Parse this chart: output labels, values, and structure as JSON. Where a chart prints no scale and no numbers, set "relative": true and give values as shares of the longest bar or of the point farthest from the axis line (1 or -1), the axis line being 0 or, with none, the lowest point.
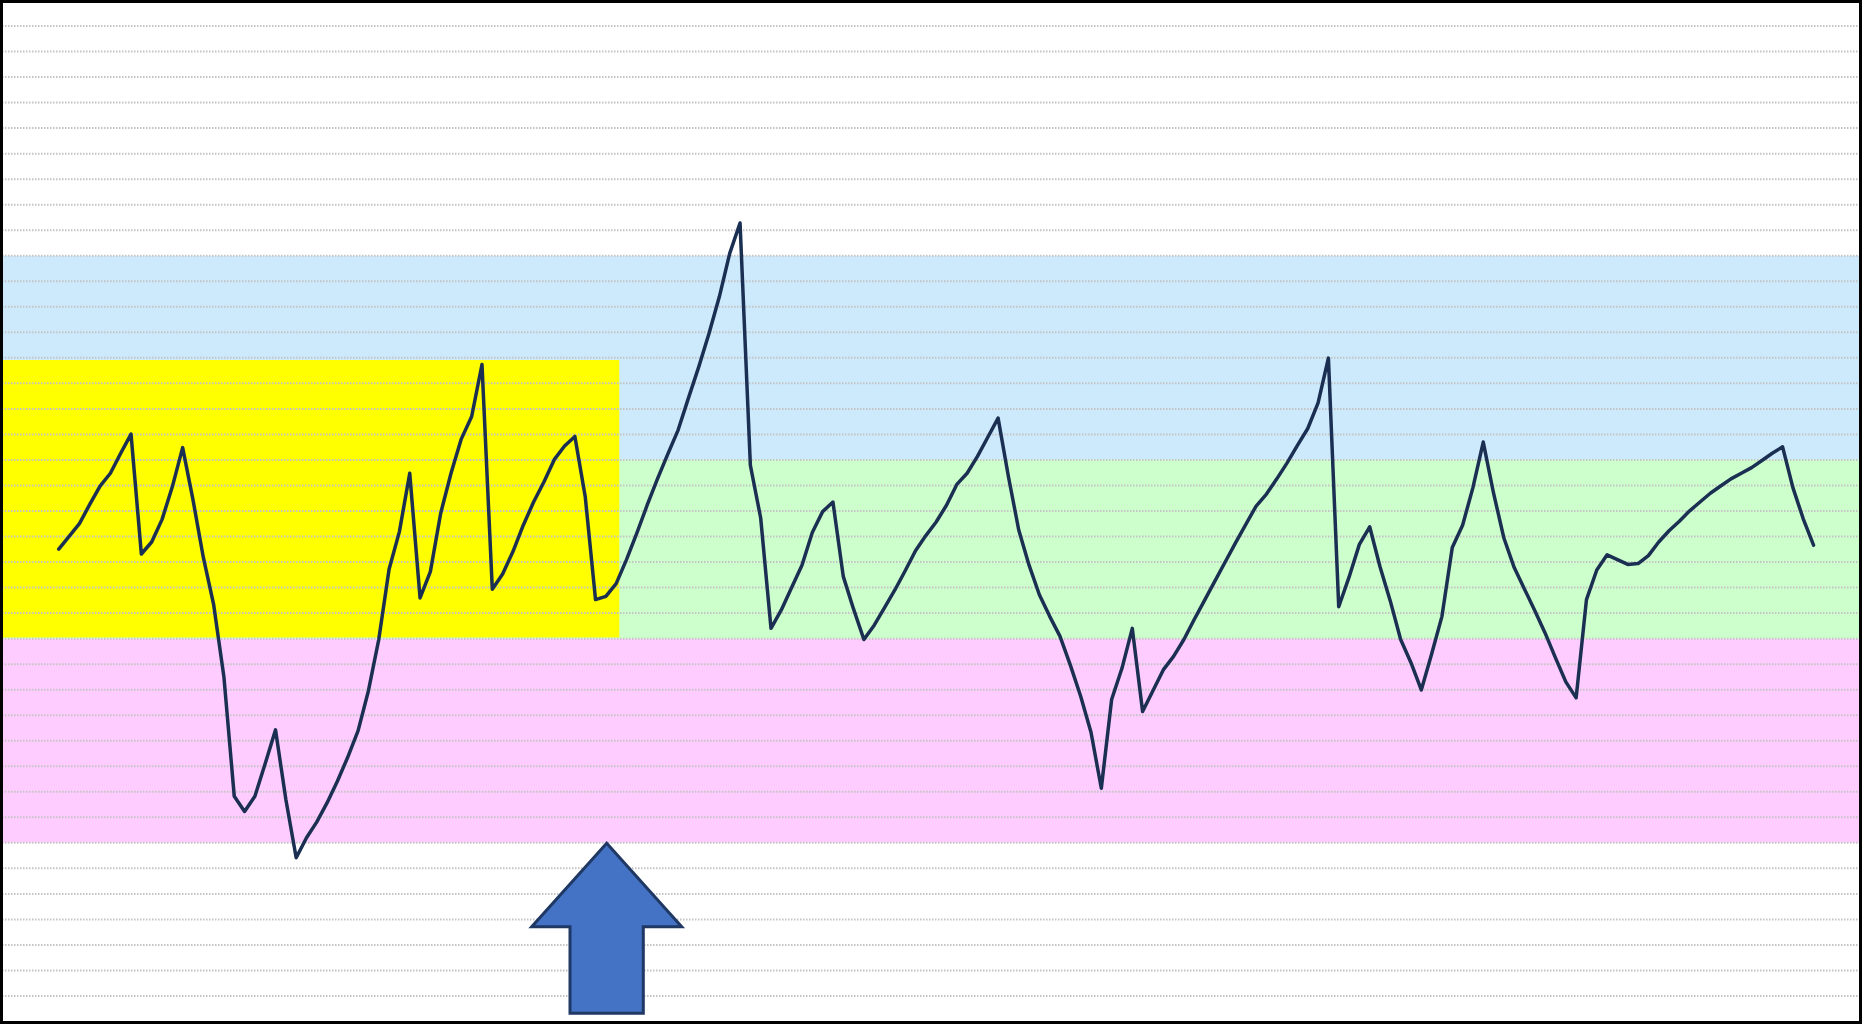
{
  "chart_data": {
    "type": "line",
    "relative": true,
    "grid": "y",
    "line_style": "solid",
    "color": "#1b2f52",
    "categories": [
      null,
      null,
      null,
      null,
      null,
      null,
      null,
      null,
      null,
      null,
      null,
      null,
      null,
      null,
      null,
      null,
      null,
      null,
      null,
      null,
      null,
      null,
      null,
      null,
      null,
      null,
      null,
      null,
      null,
      null,
      null,
      null,
      null,
      null,
      null,
      null,
      null,
      null,
      null,
      null,
      null,
      null,
      null,
      null,
      null,
      null,
      null,
      null,
      null,
      null,
      null,
      null,
      null,
      null,
      null,
      null,
      null,
      null,
      null,
      null,
      null,
      null,
      null,
      null,
      null,
      null,
      null,
      null,
      null,
      null,
      null,
      null,
      null,
      null,
      null,
      null,
      null,
      null,
      null,
      null,
      null,
      null,
      null,
      null,
      null,
      null,
      null,
      null,
      null,
      null,
      null,
      null,
      null,
      null,
      null,
      null,
      null,
      null,
      null,
      null,
      null,
      null,
      null,
      null,
      null,
      null,
      null,
      null,
      null,
      null,
      null,
      null,
      null,
      null,
      null,
      null,
      null,
      null,
      null,
      null,
      null,
      null,
      null,
      null,
      null,
      null,
      null,
      null,
      null,
      null,
      null,
      null,
      null,
      null,
      null,
      null,
      null,
      null,
      null,
      null,
      null,
      null,
      null,
      null,
      null,
      null,
      null,
      null,
      null,
      null,
      null,
      null,
      null,
      null,
      null,
      null,
      null,
      null,
      null,
      null,
      null,
      null,
      null,
      null,
      null,
      null,
      null,
      null,
      null,
      null,
      null,
      null,
      null,
      null,
      null,
      null,
      null,
      null,
      null,
      null
    ],
    "values": [
      null,
      null,
      null,
      null,
      null,
      0.592,
      0.608,
      0.624,
      0.648,
      0.671,
      0.687,
      0.712,
      0.736,
      0.586,
      0.601,
      0.629,
      0.67,
      0.719,
      0.654,
      0.582,
      0.523,
      0.432,
      0.283,
      0.264,
      0.283,
      0.324,
      0.366,
      0.279,
      0.206,
      0.231,
      0.251,
      0.275,
      0.302,
      0.332,
      0.365,
      0.415,
      0.479,
      0.567,
      0.614,
      0.687,
      0.531,
      0.564,
      0.637,
      0.687,
      0.73,
      0.758,
      0.823,
      0.542,
      0.561,
      0.589,
      0.622,
      0.651,
      0.676,
      0.704,
      0.721,
      0.733,
      0.658,
      0.529,
      0.533,
      0.549,
      0.579,
      0.612,
      0.647,
      0.68,
      0.711,
      0.741,
      0.781,
      0.82,
      0.862,
      0.908,
      0.962,
      1,
      0.697,
      0.631,
      0.493,
      0.516,
      0.544,
      0.572,
      0.613,
      0.639,
      0.651,
      0.558,
      0.517,
      0.479,
      0.497,
      0.519,
      0.541,
      0.565,
      0.59,
      0.609,
      0.626,
      0.647,
      0.673,
      0.687,
      0.708,
      0.732,
      0.756,
      0.683,
      0.616,
      0.572,
      0.535,
      0.508,
      0.483,
      0.447,
      0.408,
      0.363,
      0.293,
      0.404,
      0.443,
      0.493,
      0.389,
      0.415,
      0.441,
      0.458,
      0.479,
      0.504,
      0.528,
      0.552,
      0.576,
      0.6,
      0.623,
      0.646,
      0.661,
      0.68,
      0.7,
      0.722,
      0.743,
      0.775,
      0.831,
      0.52,
      0.557,
      0.598,
      0.62,
      0.57,
      0.527,
      0.479,
      0.45,
      0.416,
      0.461,
      0.508,
      0.594,
      0.622,
      0.669,
      0.726,
      0.662,
      0.606,
      0.569,
      0.542,
      0.515,
      0.487,
      0.456,
      0.426,
      0.406,
      0.529,
      0.566,
      0.585,
      0.579,
      0.573,
      0.574,
      0.584,
      0.601,
      0.615,
      0.627,
      0.64,
      0.651,
      0.662,
      0.671,
      0.68,
      0.687,
      0.694,
      0.703,
      0.712,
      0.72,
      0.669,
      0.63,
      0.597,
      null,
      null,
      null,
      null
    ],
    "bands": [
      {
        "axis": "y",
        "from": 0.704,
        "to": 0.959,
        "color": "#cceafc"
      },
      {
        "axis": "y",
        "from": 0.48,
        "to": 0.704,
        "color": "#ccffcc"
      },
      {
        "axis": "y",
        "from": 0.225,
        "to": 0.48,
        "color": "#ffccff"
      }
    ]
  }
}
